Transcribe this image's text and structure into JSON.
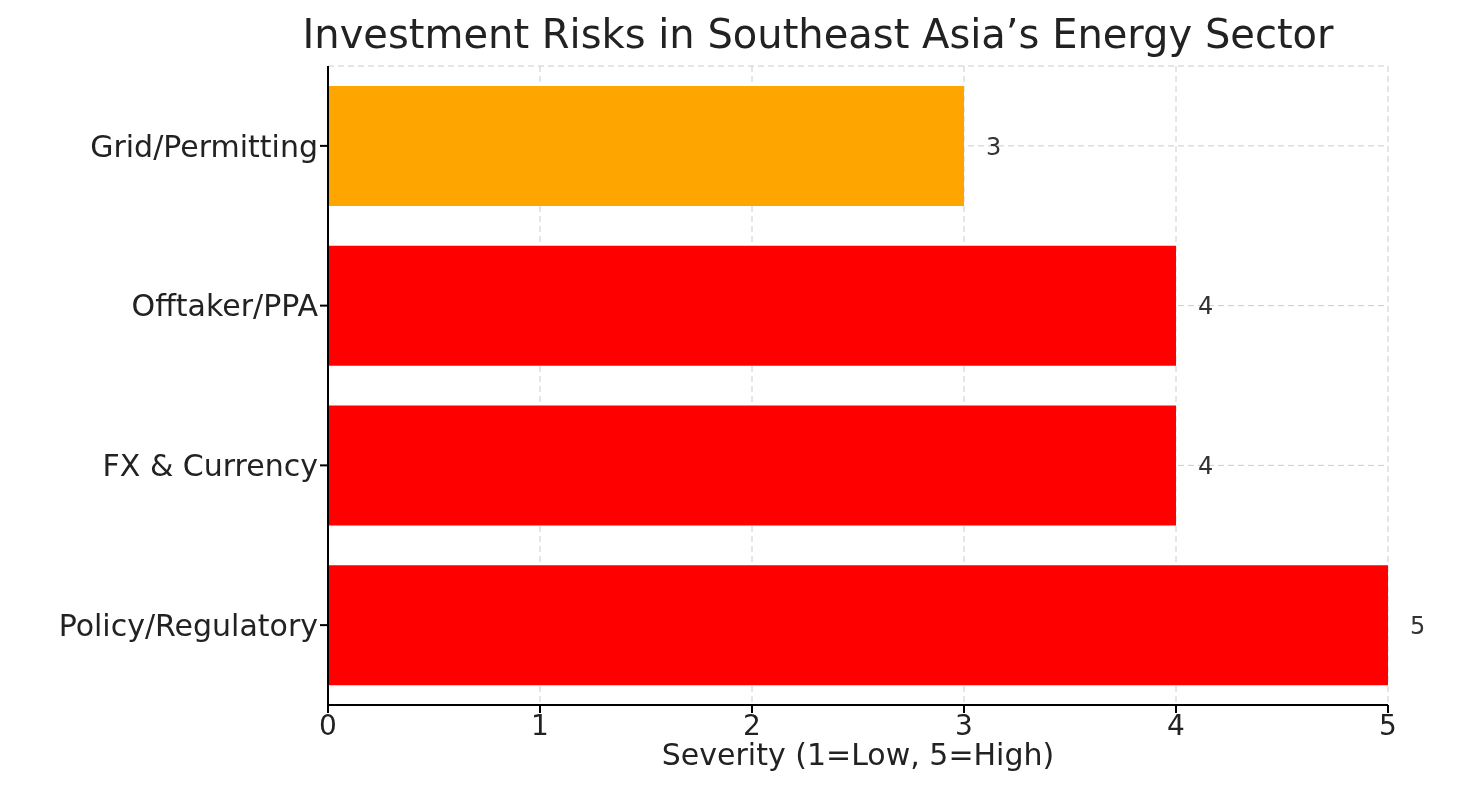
{
  "chart_data": {
    "type": "bar",
    "orientation": "horizontal",
    "title": "Investment Risks in Southeast Asia’s Energy Sector",
    "xlabel": "Severity (1=Low, 5=High)",
    "categories": [
      "Grid/Permitting",
      "Offtaker/PPA",
      "FX & Currency",
      "Policy/Regulatory"
    ],
    "values": [
      3,
      4,
      4,
      5
    ],
    "colors": [
      "#ffa500",
      "#ff0000",
      "#ff0000",
      "#ff0000"
    ],
    "xlim": [
      0,
      5
    ],
    "xticks": [
      0,
      1,
      2,
      3,
      4,
      5
    ],
    "grid": true,
    "data_labels": true
  }
}
